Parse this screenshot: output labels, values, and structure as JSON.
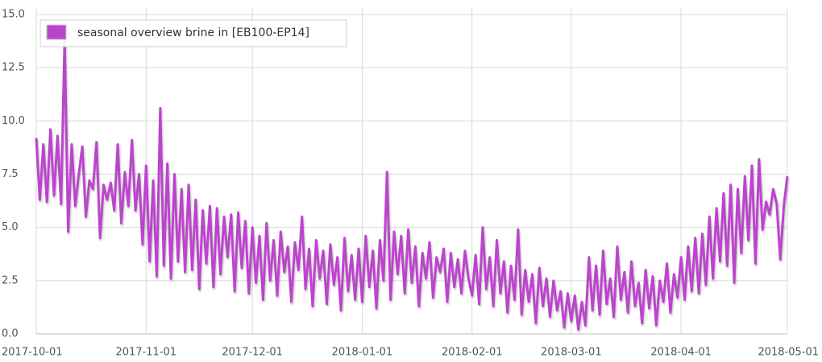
{
  "chart_data": {
    "type": "line",
    "series": [
      {
        "name": "seasonal overview brine in [EB100-EP14]",
        "color": "#bb44cc",
        "values": [
          9.2,
          6.3,
          8.9,
          6.2,
          9.6,
          6.5,
          9.3,
          6.1,
          13.8,
          4.8,
          8.9,
          6.0,
          7.5,
          8.8,
          5.5,
          7.2,
          6.8,
          9.0,
          4.5,
          7.0,
          6.3,
          7.1,
          5.8,
          8.9,
          5.2,
          7.6,
          6.0,
          9.1,
          5.8,
          7.5,
          4.2,
          7.9,
          3.4,
          7.2,
          2.7,
          10.6,
          3.2,
          8.0,
          2.6,
          7.5,
          3.4,
          6.8,
          2.9,
          7.0,
          3.0,
          6.3,
          2.1,
          5.8,
          3.3,
          6.0,
          2.2,
          5.9,
          2.8,
          5.5,
          3.6,
          5.6,
          2.0,
          5.7,
          3.1,
          5.3,
          1.9,
          5.0,
          2.4,
          4.6,
          1.6,
          5.2,
          2.5,
          4.4,
          1.8,
          4.8,
          2.9,
          4.1,
          1.5,
          4.3,
          3.0,
          5.5,
          2.1,
          4.0,
          1.3,
          4.4,
          2.6,
          3.9,
          1.4,
          4.2,
          2.3,
          3.6,
          1.1,
          4.5,
          2.0,
          3.7,
          1.6,
          4.0,
          1.5,
          4.6,
          2.2,
          3.9,
          1.2,
          4.4,
          2.5,
          7.6,
          1.6,
          4.8,
          2.8,
          4.6,
          1.9,
          4.9,
          2.4,
          4.1,
          1.3,
          3.8,
          2.6,
          4.3,
          1.7,
          3.6,
          2.9,
          4.0,
          1.5,
          3.8,
          2.2,
          3.5,
          1.9,
          3.9,
          2.6,
          1.8,
          3.7,
          1.4,
          5.0,
          2.1,
          3.6,
          1.3,
          4.4,
          1.9,
          3.4,
          1.0,
          3.2,
          1.6,
          4.9,
          0.9,
          3.0,
          1.5,
          2.8,
          0.5,
          3.1,
          1.3,
          2.6,
          0.8,
          2.5,
          1.1,
          2.0,
          0.3,
          1.9,
          0.6,
          1.8,
          0.2,
          1.5,
          0.4,
          3.6,
          1.1,
          3.2,
          0.9,
          3.9,
          1.4,
          2.6,
          0.8,
          4.1,
          1.6,
          2.9,
          1.0,
          3.4,
          1.3,
          2.4,
          0.5,
          3.0,
          1.2,
          2.7,
          0.4,
          2.5,
          1.5,
          3.3,
          1.0,
          2.8,
          1.7,
          3.6,
          1.6,
          4.1,
          2.0,
          4.5,
          1.9,
          4.7,
          2.3,
          5.5,
          2.6,
          5.9,
          3.4,
          6.6,
          3.2,
          7.0,
          2.4,
          6.8,
          3.8,
          7.4,
          4.4,
          7.9,
          3.3,
          8.2,
          4.9,
          6.2,
          5.6,
          6.8,
          6.1,
          3.5,
          6.0,
          7.4
        ]
      }
    ],
    "x": [
      "2017-10-01",
      "2017-10-02",
      "2017-10-03",
      "2017-10-04",
      "2017-10-05",
      "2017-10-06",
      "2017-10-07",
      "2017-10-08",
      "2017-10-09",
      "2017-10-10",
      "2017-10-11",
      "2017-10-12",
      "2017-10-13",
      "2017-10-14",
      "2017-10-15",
      "2017-10-16",
      "2017-10-17",
      "2017-10-18",
      "2017-10-19",
      "2017-10-20",
      "2017-10-21",
      "2017-10-22",
      "2017-10-23",
      "2017-10-24",
      "2017-10-25",
      "2017-10-26",
      "2017-10-27",
      "2017-10-28",
      "2017-10-29",
      "2017-10-30",
      "2017-10-31",
      "2017-11-01",
      "2017-11-02",
      "2017-11-03",
      "2017-11-04",
      "2017-11-05",
      "2017-11-06",
      "2017-11-07",
      "2017-11-08",
      "2017-11-09",
      "2017-11-10",
      "2017-11-11",
      "2017-11-12",
      "2017-11-13",
      "2017-11-14",
      "2017-11-15",
      "2017-11-16",
      "2017-11-17",
      "2017-11-18",
      "2017-11-19",
      "2017-11-20",
      "2017-11-21",
      "2017-11-22",
      "2017-11-23",
      "2017-11-24",
      "2017-11-25",
      "2017-11-26",
      "2017-11-27",
      "2017-11-28",
      "2017-11-29",
      "2017-11-30",
      "2017-12-01",
      "2017-12-02",
      "2017-12-03",
      "2017-12-04",
      "2017-12-05",
      "2017-12-06",
      "2017-12-07",
      "2017-12-08",
      "2017-12-09",
      "2017-12-10",
      "2017-12-11",
      "2017-12-12",
      "2017-12-13",
      "2017-12-14",
      "2017-12-15",
      "2017-12-16",
      "2017-12-17",
      "2017-12-18",
      "2017-12-19",
      "2017-12-20",
      "2017-12-21",
      "2017-12-22",
      "2017-12-23",
      "2017-12-24",
      "2017-12-25",
      "2017-12-26",
      "2017-12-27",
      "2017-12-28",
      "2017-12-29",
      "2017-12-30",
      "2017-12-31",
      "2018-01-01",
      "2018-01-02",
      "2018-01-03",
      "2018-01-04",
      "2018-01-05",
      "2018-01-06",
      "2018-01-07",
      "2018-01-08",
      "2018-01-09",
      "2018-01-10",
      "2018-01-11",
      "2018-01-12",
      "2018-01-13",
      "2018-01-14",
      "2018-01-15",
      "2018-01-16",
      "2018-01-17",
      "2018-01-18",
      "2018-01-19",
      "2018-01-20",
      "2018-01-21",
      "2018-01-22",
      "2018-01-23",
      "2018-01-24",
      "2018-01-25",
      "2018-01-26",
      "2018-01-27",
      "2018-01-28",
      "2018-01-29",
      "2018-01-30",
      "2018-01-31",
      "2018-02-01",
      "2018-02-02",
      "2018-02-03",
      "2018-02-04",
      "2018-02-05",
      "2018-02-06",
      "2018-02-07",
      "2018-02-08",
      "2018-02-09",
      "2018-02-10",
      "2018-02-11",
      "2018-02-12",
      "2018-02-13",
      "2018-02-14",
      "2018-02-15",
      "2018-02-16",
      "2018-02-17",
      "2018-02-18",
      "2018-02-19",
      "2018-02-20",
      "2018-02-21",
      "2018-02-22",
      "2018-02-23",
      "2018-02-24",
      "2018-02-25",
      "2018-02-26",
      "2018-02-27",
      "2018-02-28",
      "2018-03-01",
      "2018-03-02",
      "2018-03-03",
      "2018-03-04",
      "2018-03-05",
      "2018-03-06",
      "2018-03-07",
      "2018-03-08",
      "2018-03-09",
      "2018-03-10",
      "2018-03-11",
      "2018-03-12",
      "2018-03-13",
      "2018-03-14",
      "2018-03-15",
      "2018-03-16",
      "2018-03-17",
      "2018-03-18",
      "2018-03-19",
      "2018-03-20",
      "2018-03-21",
      "2018-03-22",
      "2018-03-23",
      "2018-03-24",
      "2018-03-25",
      "2018-03-26",
      "2018-03-27",
      "2018-03-28",
      "2018-03-29",
      "2018-03-30",
      "2018-03-31",
      "2018-04-01",
      "2018-04-02",
      "2018-04-03",
      "2018-04-04",
      "2018-04-05",
      "2018-04-06",
      "2018-04-07",
      "2018-04-08",
      "2018-04-09",
      "2018-04-10",
      "2018-04-11",
      "2018-04-12",
      "2018-04-13",
      "2018-04-14",
      "2018-04-15",
      "2018-04-16",
      "2018-04-17",
      "2018-04-18",
      "2018-04-19",
      "2018-04-20",
      "2018-04-21",
      "2018-04-22",
      "2018-04-23",
      "2018-04-24",
      "2018-04-25",
      "2018-04-26",
      "2018-04-27",
      "2018-04-28",
      "2018-04-29",
      "2018-04-30",
      "2018-05-01"
    ],
    "xlim": [
      "2017-10-01",
      "2018-05-01"
    ],
    "xticks": [
      "2017-10-01",
      "2017-11-01",
      "2017-12-01",
      "2018-01-01",
      "2018-02-01",
      "2018-03-01",
      "2018-04-01",
      "2018-05-01"
    ],
    "ylim": [
      0,
      15
    ],
    "yticks": [
      {
        "value": 0,
        "label": "0.0"
      },
      {
        "value": 2.5,
        "label": "2.5"
      },
      {
        "value": 5,
        "label": "5.0"
      },
      {
        "value": 7.5,
        "label": "7.5"
      },
      {
        "value": 10,
        "label": "10.0"
      },
      {
        "value": 12.5,
        "label": "12.5"
      },
      {
        "value": 15,
        "label": "15.0"
      }
    ],
    "grid": true,
    "legend": "upper left"
  }
}
